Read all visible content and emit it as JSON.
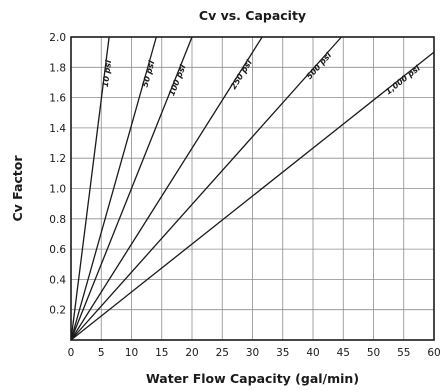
{
  "chart_data": {
    "type": "line",
    "title": "Cv vs. Capacity",
    "xlabel": "Water Flow Capacity (gal/min)",
    "ylabel": "Cv Factor",
    "xlim": [
      0,
      60
    ],
    "ylim": [
      0,
      2.0
    ],
    "x_ticks": [
      0,
      5,
      10,
      15,
      20,
      25,
      30,
      35,
      40,
      45,
      50,
      55,
      60
    ],
    "x_tick_labels": [
      "0",
      "5",
      "10",
      "15",
      "20",
      "25",
      "30",
      "35",
      "40",
      "45",
      "50",
      "55",
      "60"
    ],
    "y_ticks": [
      0.2,
      0.4,
      0.6,
      0.8,
      1.0,
      1.2,
      1.4,
      1.6,
      1.8,
      2.0
    ],
    "y_tick_labels": [
      "0.2",
      "0.4",
      "0.6",
      "0.8",
      "1.0",
      "1.2",
      "1.4",
      "1.6",
      "1.8",
      "2.0"
    ],
    "grid": true,
    "line_color": "#1a1a1a",
    "grid_color": "#8c8c8c",
    "series": [
      {
        "name": "10 psi",
        "x": [
          0,
          6.3
        ],
        "y": [
          0,
          2.0
        ]
      },
      {
        "name": "50 psi",
        "x": [
          0,
          14.1
        ],
        "y": [
          0,
          2.0
        ]
      },
      {
        "name": "100 psi",
        "x": [
          0,
          20.0
        ],
        "y": [
          0,
          2.0
        ]
      },
      {
        "name": "250 psi",
        "x": [
          0,
          31.6
        ],
        "y": [
          0,
          2.0
        ]
      },
      {
        "name": "500 psi",
        "x": [
          0,
          44.7
        ],
        "y": [
          0,
          2.0
        ]
      },
      {
        "name": "1,000 psi",
        "x": [
          0,
          60.0
        ],
        "y": [
          0,
          1.9
        ]
      }
    ]
  }
}
